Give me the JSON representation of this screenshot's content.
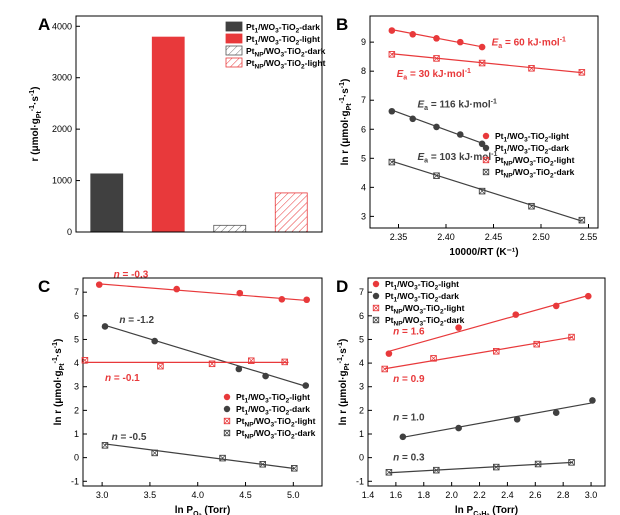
{
  "colors": {
    "dark": "#404040",
    "red": "#e8393b",
    "hatch_gray": "#777777",
    "hatch_red": "#e8393b"
  },
  "chart_data": [
    {
      "panel": "A",
      "type": "bar",
      "ylabel": "r (μmol·g_Pt⁻¹·s⁻¹)",
      "ylim": [
        0,
        4200
      ],
      "yticks": [
        0,
        1000,
        2000,
        3000,
        4000
      ],
      "categories": [
        "Pt1/WO3-TiO2-dark",
        "Pt1/WO3-TiO2-light",
        "PtNP/WO3-TiO2-dark",
        "PtNP/WO3-TiO2-light"
      ],
      "values": [
        1130,
        3790,
        130,
        760
      ],
      "styles": [
        "solid-dark",
        "solid-red",
        "hatch-gray",
        "hatch-red"
      ],
      "legend": {
        "position": "top-right",
        "entries": [
          {
            "pre": "Pt",
            "sub": "1",
            "post": "/WO",
            "sub2": "3",
            "post2": "-TiO",
            "sub3": "2",
            "post3": "-dark",
            "style": "solid-dark"
          },
          {
            "pre": "Pt",
            "sub": "1",
            "post": "/WO",
            "sub2": "3",
            "post2": "-TiO",
            "sub3": "2",
            "post3": "-light",
            "style": "solid-red"
          },
          {
            "pre": "Pt",
            "sub": "NP",
            "post": "/WO",
            "sub2": "3",
            "post2": "-TiO",
            "sub3": "2",
            "post3": "-dark",
            "style": "hatch-gray"
          },
          {
            "pre": "Pt",
            "sub": "NP",
            "post": "/WO",
            "sub2": "3",
            "post2": "-TiO",
            "sub3": "2",
            "post3": "-light",
            "style": "hatch-red"
          }
        ]
      }
    },
    {
      "panel": "B",
      "type": "scatter",
      "xlabel": "10000/RT (K⁻¹)",
      "ylabel": "ln r (μmol·g_Pt⁻¹·s⁻¹)",
      "xlim": [
        2.32,
        2.56
      ],
      "ylim": [
        2.6,
        9.9
      ],
      "xticks": [
        2.35,
        2.4,
        2.45,
        2.5,
        2.55
      ],
      "yticks": [
        3,
        4,
        5,
        6,
        7,
        8,
        9
      ],
      "series": [
        {
          "marker": "dot-red",
          "x": [
            2.343,
            2.365,
            2.39,
            2.415,
            2.438
          ],
          "y": [
            9.4,
            9.27,
            9.13,
            9.0,
            8.83
          ],
          "fit_x": [
            2.343,
            2.438
          ],
          "fit_y": [
            9.43,
            8.84
          ]
        },
        {
          "marker": "dot-dark",
          "x": [
            2.343,
            2.365,
            2.39,
            2.415,
            2.438
          ],
          "y": [
            6.62,
            6.36,
            6.08,
            5.82,
            5.5
          ],
          "fit_x": [
            2.343,
            2.438
          ],
          "fit_y": [
            6.66,
            5.52
          ]
        },
        {
          "marker": "box-red",
          "x": [
            2.343,
            2.39,
            2.438,
            2.49,
            2.543
          ],
          "y": [
            8.58,
            8.44,
            8.28,
            8.1,
            7.96
          ],
          "fit_x": [
            2.343,
            2.543
          ],
          "fit_y": [
            8.6,
            7.95
          ]
        },
        {
          "marker": "box-dark",
          "x": [
            2.343,
            2.39,
            2.438,
            2.49,
            2.543
          ],
          "y": [
            4.87,
            4.4,
            3.87,
            3.35,
            2.87
          ],
          "fit_x": [
            2.343,
            2.543
          ],
          "fit_y": [
            4.9,
            2.84
          ]
        }
      ],
      "annotations": [
        {
          "var": "E",
          "sub": "a",
          "rest": " = 60 kJ·mol",
          "sup": "-1",
          "color": "red",
          "x": 2.448,
          "y": 8.88
        },
        {
          "var": "E",
          "sub": "a",
          "rest": " = 30 kJ·mol",
          "sup": "-1",
          "color": "red",
          "x": 2.348,
          "y": 7.8
        },
        {
          "var": "E",
          "sub": "a",
          "rest": " = 116 kJ·mol",
          "sup": "-1",
          "color": "dark",
          "x": 2.37,
          "y": 6.75
        },
        {
          "var": "E",
          "sub": "a",
          "rest": " = 103 kJ·mol",
          "sup": "-1",
          "color": "dark",
          "x": 2.37,
          "y": 4.95
        }
      ],
      "legend": {
        "position": "center-right",
        "entries": [
          {
            "pre": "Pt",
            "sub": "1",
            "post": "/WO",
            "sub2": "3",
            "post2": "-TiO",
            "sub3": "2",
            "post3": "-light",
            "marker": "dot-red"
          },
          {
            "pre": "Pt",
            "sub": "1",
            "post": "/WO",
            "sub2": "3",
            "post2": "-TiO",
            "sub3": "2",
            "post3": "-dark",
            "marker": "dot-dark"
          },
          {
            "pre": "Pt",
            "sub": "NP",
            "post": "/WO",
            "sub2": "3",
            "post2": "-TiO",
            "sub3": "2",
            "post3": "-light",
            "marker": "box-red"
          },
          {
            "pre": "Pt",
            "sub": "NP",
            "post": "/WO",
            "sub2": "3",
            "post2": "-TiO",
            "sub3": "2",
            "post3": "-dark",
            "marker": "box-dark"
          }
        ]
      }
    },
    {
      "panel": "C",
      "type": "scatter",
      "xlabel": "ln P_O2 (Torr)",
      "ylabel": "ln r (μmol·g_Pt⁻¹·s⁻¹)",
      "xlim": [
        2.8,
        5.3
      ],
      "ylim": [
        -1.2,
        7.6
      ],
      "xticks": [
        3.0,
        3.5,
        4.0,
        4.5,
        5.0
      ],
      "yticks": [
        -1,
        0,
        1,
        2,
        3,
        4,
        5,
        6,
        7
      ],
      "series": [
        {
          "marker": "dot-red",
          "x": [
            2.97,
            3.78,
            4.44,
            4.88,
            5.14
          ],
          "y": [
            7.32,
            7.13,
            6.96,
            6.7,
            6.68
          ],
          "fit_x": [
            2.97,
            5.14
          ],
          "fit_y": [
            7.35,
            6.65
          ]
        },
        {
          "marker": "dot-dark",
          "x": [
            3.03,
            3.55,
            4.43,
            4.71,
            5.13
          ],
          "y": [
            5.55,
            4.93,
            3.75,
            3.45,
            3.05
          ],
          "fit_x": [
            3.03,
            5.13
          ],
          "fit_y": [
            5.6,
            3.02
          ]
        },
        {
          "marker": "box-red",
          "x": [
            2.82,
            3.61,
            4.15,
            4.56,
            4.91
          ],
          "y": [
            4.12,
            3.87,
            3.97,
            4.1,
            4.05
          ],
          "fit_x": [
            2.82,
            4.95
          ],
          "fit_y": [
            4.03,
            4.03
          ]
        },
        {
          "marker": "box-dark",
          "x": [
            3.03,
            3.55,
            4.26,
            4.68,
            5.01
          ],
          "y": [
            0.52,
            0.2,
            -0.02,
            -0.28,
            -0.45
          ],
          "fit_x": [
            3.03,
            5.01
          ],
          "fit_y": [
            0.58,
            -0.46
          ]
        }
      ],
      "annotations": [
        {
          "var": "n",
          "rest": " = -0.3",
          "color": "red",
          "x": 3.12,
          "y": 7.62
        },
        {
          "var": "n",
          "rest": " = -1.2",
          "color": "dark",
          "x": 3.18,
          "y": 5.7
        },
        {
          "var": "n",
          "rest": " = -0.1",
          "color": "red",
          "x": 3.03,
          "y": 3.25
        },
        {
          "var": "n",
          "rest": " = -0.5",
          "color": "dark",
          "x": 3.1,
          "y": 0.75
        }
      ],
      "legend": {
        "position": "bottom-right",
        "entries": [
          {
            "pre": "Pt",
            "sub": "1",
            "post": "/WO",
            "sub2": "3",
            "post2": "-TiO",
            "sub3": "2",
            "post3": "-light",
            "marker": "dot-red"
          },
          {
            "pre": "Pt",
            "sub": "1",
            "post": "/WO",
            "sub2": "3",
            "post2": "-TiO",
            "sub3": "2",
            "post3": "-dark",
            "marker": "dot-dark"
          },
          {
            "pre": "Pt",
            "sub": "NP",
            "post": "/WO",
            "sub2": "3",
            "post2": "-TiO",
            "sub3": "2",
            "post3": "-light",
            "marker": "box-red"
          },
          {
            "pre": "Pt",
            "sub": "NP",
            "post": "/WO",
            "sub2": "3",
            "post2": "-TiO",
            "sub3": "2",
            "post3": "-dark",
            "marker": "box-dark"
          }
        ]
      }
    },
    {
      "panel": "D",
      "type": "scatter",
      "xlabel": "ln P_C3H8 (Torr)",
      "ylabel": "ln r (μmol·g_Pt⁻¹·s⁻¹)",
      "xlim": [
        1.4,
        3.1
      ],
      "ylim": [
        -1.2,
        7.6
      ],
      "xticks": [
        1.4,
        1.6,
        1.8,
        2.0,
        2.2,
        2.4,
        2.6,
        2.8,
        3.0
      ],
      "yticks": [
        -1,
        0,
        1,
        2,
        3,
        4,
        5,
        6,
        7
      ],
      "series": [
        {
          "marker": "dot-red",
          "x": [
            1.55,
            2.05,
            2.46,
            2.75,
            2.98
          ],
          "y": [
            4.4,
            5.5,
            6.05,
            6.42,
            6.83
          ],
          "fit_x": [
            1.55,
            2.98
          ],
          "fit_y": [
            4.5,
            6.86
          ]
        },
        {
          "marker": "dot-dark",
          "x": [
            1.65,
            2.05,
            2.47,
            2.75,
            3.01
          ],
          "y": [
            0.88,
            1.25,
            1.62,
            1.9,
            2.42
          ],
          "fit_x": [
            1.65,
            3.01
          ],
          "fit_y": [
            0.86,
            2.32
          ]
        },
        {
          "marker": "box-red",
          "x": [
            1.52,
            1.87,
            2.32,
            2.61,
            2.86
          ],
          "y": [
            3.75,
            4.2,
            4.5,
            4.8,
            5.1
          ],
          "fit_x": [
            1.52,
            2.87
          ],
          "fit_y": [
            3.76,
            5.1
          ]
        },
        {
          "marker": "box-dark",
          "x": [
            1.55,
            1.89,
            2.32,
            2.62,
            2.86
          ],
          "y": [
            -0.62,
            -0.53,
            -0.4,
            -0.27,
            -0.2
          ],
          "fit_x": [
            1.55,
            2.87
          ],
          "fit_y": [
            -0.64,
            -0.2
          ]
        }
      ],
      "annotations": [
        {
          "var": "n",
          "rest": " = 1.6",
          "color": "red",
          "x": 1.58,
          "y": 5.22
        },
        {
          "var": "n",
          "rest": " = 0.9",
          "color": "red",
          "x": 1.58,
          "y": 3.2
        },
        {
          "var": "n",
          "rest": " = 1.0",
          "color": "dark",
          "x": 1.58,
          "y": 1.58
        },
        {
          "var": "n",
          "rest": " = 0.3",
          "color": "dark",
          "x": 1.58,
          "y": -0.12
        }
      ],
      "legend": {
        "position": "top-left",
        "entries": [
          {
            "pre": "Pt",
            "sub": "1",
            "post": "/WO",
            "sub2": "3",
            "post2": "-TiO",
            "sub3": "2",
            "post3": "-light",
            "marker": "dot-red"
          },
          {
            "pre": "Pt",
            "sub": "1",
            "post": "/WO",
            "sub2": "3",
            "post2": "-TiO",
            "sub3": "2",
            "post3": "-dark",
            "marker": "dot-dark"
          },
          {
            "pre": "Pt",
            "sub": "NP",
            "post": "/WO",
            "sub2": "3",
            "post2": "-TiO",
            "sub3": "2",
            "post3": "-light",
            "marker": "box-red"
          },
          {
            "pre": "Pt",
            "sub": "NP",
            "post": "/WO",
            "sub2": "3",
            "post2": "-TiO",
            "sub3": "2",
            "post3": "-dark",
            "marker": "box-dark"
          }
        ]
      }
    }
  ],
  "panel_labels": [
    "A",
    "B",
    "C",
    "D"
  ]
}
